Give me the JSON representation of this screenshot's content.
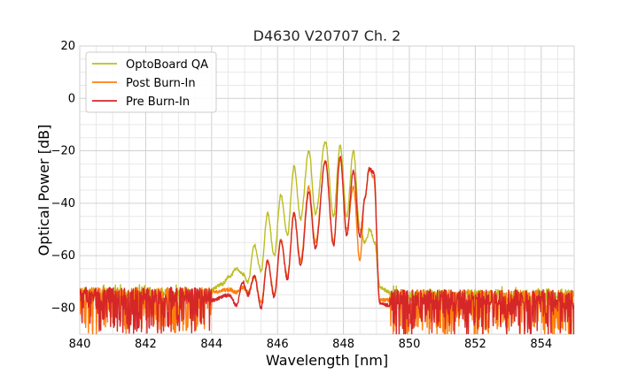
{
  "chart_data": {
    "type": "line",
    "title": "D4630 V20707 Ch. 2",
    "xlabel": "Wavelength [nm]",
    "ylabel": "Optical Power [dB]",
    "xlim": [
      840,
      855
    ],
    "ylim": [
      -90,
      20
    ],
    "xticks": [
      "840",
      "842",
      "844",
      "846",
      "848",
      "850",
      "852",
      "854"
    ],
    "yticks": [
      "20",
      "0",
      "−20",
      "−40",
      "−60",
      "−80"
    ],
    "grid": true,
    "legend_position": "top-left",
    "noise_floor": {
      "range": [
        840,
        855
      ],
      "band_dB": [
        -90,
        -72
      ]
    },
    "series": [
      {
        "name": "OptoBoard QA",
        "color": "#bcbd22",
        "points": [
          [
            844.0,
            -73
          ],
          [
            844.3,
            -71
          ],
          [
            844.55,
            -68
          ],
          [
            844.75,
            -65
          ],
          [
            844.95,
            -67
          ],
          [
            845.1,
            -70
          ],
          [
            845.3,
            -56
          ],
          [
            845.5,
            -66
          ],
          [
            845.7,
            -44
          ],
          [
            845.9,
            -60
          ],
          [
            846.1,
            -37
          ],
          [
            846.3,
            -52
          ],
          [
            846.5,
            -26
          ],
          [
            846.7,
            -46
          ],
          [
            846.95,
            -20
          ],
          [
            847.15,
            -44
          ],
          [
            847.45,
            -16.5
          ],
          [
            847.7,
            -45
          ],
          [
            847.9,
            -18
          ],
          [
            848.1,
            -45
          ],
          [
            848.3,
            -20
          ],
          [
            848.5,
            -50
          ],
          [
            848.65,
            -55
          ],
          [
            848.8,
            -50
          ],
          [
            848.95,
            -55
          ],
          [
            849.1,
            -72
          ],
          [
            849.4,
            -74
          ]
        ]
      },
      {
        "name": "Post Burn-In",
        "color": "#ff7f0e",
        "points": [
          [
            844.0,
            -74
          ],
          [
            844.55,
            -73
          ],
          [
            844.75,
            -74
          ],
          [
            844.95,
            -72
          ],
          [
            845.1,
            -74
          ],
          [
            845.3,
            -68
          ],
          [
            845.5,
            -78
          ],
          [
            845.7,
            -62
          ],
          [
            845.9,
            -75
          ],
          [
            846.1,
            -54
          ],
          [
            846.3,
            -68
          ],
          [
            846.5,
            -44
          ],
          [
            846.7,
            -62
          ],
          [
            846.95,
            -34
          ],
          [
            847.15,
            -55
          ],
          [
            847.45,
            -24
          ],
          [
            847.7,
            -55
          ],
          [
            847.9,
            -23
          ],
          [
            848.1,
            -50
          ],
          [
            848.3,
            -34
          ],
          [
            848.5,
            -62
          ],
          [
            848.65,
            -38
          ],
          [
            848.78,
            -27
          ],
          [
            848.92,
            -30
          ],
          [
            849.1,
            -77
          ],
          [
            849.4,
            -77
          ]
        ]
      },
      {
        "name": "Pre Burn-In",
        "color": "#d62728",
        "points": [
          [
            844.0,
            -77
          ],
          [
            844.55,
            -75
          ],
          [
            844.75,
            -79
          ],
          [
            844.95,
            -70
          ],
          [
            845.1,
            -75
          ],
          [
            845.3,
            -68
          ],
          [
            845.5,
            -80
          ],
          [
            845.7,
            -62
          ],
          [
            845.9,
            -76
          ],
          [
            846.1,
            -54
          ],
          [
            846.3,
            -69
          ],
          [
            846.5,
            -44
          ],
          [
            846.7,
            -64
          ],
          [
            846.95,
            -36
          ],
          [
            847.15,
            -57
          ],
          [
            847.45,
            -24
          ],
          [
            847.7,
            -56
          ],
          [
            847.9,
            -22
          ],
          [
            848.1,
            -52
          ],
          [
            848.3,
            -28
          ],
          [
            848.5,
            -53
          ],
          [
            848.65,
            -38
          ],
          [
            848.78,
            -27
          ],
          [
            848.92,
            -28
          ],
          [
            849.1,
            -78
          ],
          [
            849.4,
            -79
          ]
        ]
      }
    ]
  }
}
